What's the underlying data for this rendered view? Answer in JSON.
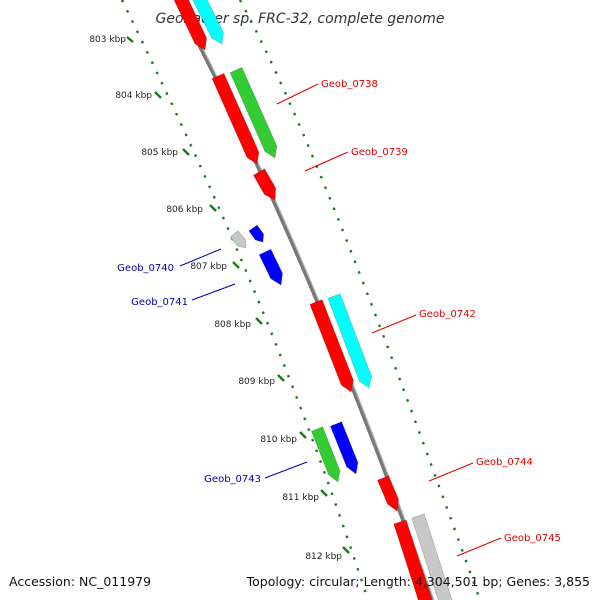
{
  "title": "Geobacter sp. FRC-32, complete genome",
  "footer": {
    "accession": "Accession: NC_011979",
    "summary": "Topology: circular; Length: 4,304,501 bp; Genes: 3,855"
  },
  "ticks": [
    {
      "label": "803 kbp"
    },
    {
      "label": "804 kbp"
    },
    {
      "label": "805 kbp"
    },
    {
      "label": "806 kbp"
    },
    {
      "label": "807 kbp"
    },
    {
      "label": "808 kbp"
    },
    {
      "label": "809 kbp"
    },
    {
      "label": "810 kbp"
    },
    {
      "label": "811 kbp"
    },
    {
      "label": "812 kbp"
    }
  ],
  "gene_labels": [
    {
      "text": "Geob_0738",
      "color": "#e00000"
    },
    {
      "text": "Geob_0739",
      "color": "#e00000"
    },
    {
      "text": "Geob_0740",
      "color": "#0000b0"
    },
    {
      "text": "Geob_0741",
      "color": "#0000b0"
    },
    {
      "text": "Geob_0742",
      "color": "#e00000"
    },
    {
      "text": "Geob_0743",
      "color": "#0000b0"
    },
    {
      "text": "Geob_0744",
      "color": "#e00000"
    },
    {
      "text": "Geob_0745",
      "color": "#e00000"
    }
  ],
  "colors": {
    "backbone": "#888888",
    "tick": "#1a7a1a",
    "red_gene": "#ff0000",
    "green_gene": "#33cc33",
    "cyan_gene": "#00ffff",
    "blue_gene": "#0000ff",
    "gray_gene": "#c8c8c8"
  }
}
